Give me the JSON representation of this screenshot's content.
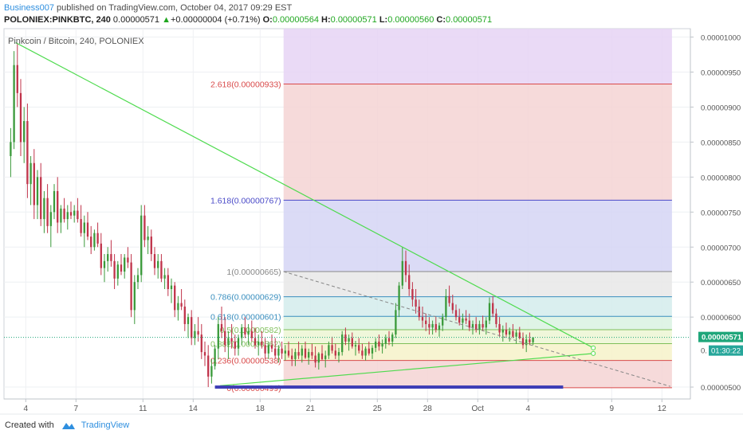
{
  "header": {
    "author": "Business007",
    "published_text": " published on TradingView.com, October 04, 2017 09:29 EST",
    "symbol": "POLONIEX:PINKBTC, 240",
    "last": "0.00000571",
    "change_arrow": "▲",
    "change": "+0.00000004 (+0.71%)",
    "o_label": "O:",
    "o_val": "0.00000564",
    "h_label": "H:",
    "h_val": "0.00000571",
    "l_label": "L:",
    "l_val": "0.00000560",
    "c_label": "C:",
    "c_val": "0.00000571"
  },
  "footer": {
    "created_with": "Created with",
    "brand": "TradingView"
  },
  "colors": {
    "up": "#3a9a3a",
    "down": "#c0334a",
    "trendline": "#4fdb4f",
    "last_price_badge": "#1fa67a",
    "timer_badge": "#26a69a",
    "fib_line_red": "#d94a4a",
    "fib_line_blue": "#4a4ac8",
    "fib_line_gray": "#888888"
  },
  "chart_data": {
    "type": "candlestick",
    "title": "Pinkcoin / Bitcoin, 240, POLONIEX",
    "y_axis": {
      "ticks": [
        "0.00001000",
        "0.00000950",
        "0.00000900",
        "0.00000850",
        "0.00000800",
        "0.00000750",
        "0.00000700",
        "0.00000650",
        "0.00000600",
        "0.00000500"
      ],
      "range": [
        4.83e-06,
        1.012e-05
      ]
    },
    "x_axis": {
      "ticks": [
        {
          "label": "4",
          "day": 4
        },
        {
          "label": "7",
          "day": 7
        },
        {
          "label": "11",
          "day": 11
        },
        {
          "label": "14",
          "day": 14
        },
        {
          "label": "18",
          "day": 18
        },
        {
          "label": "21",
          "day": 21
        },
        {
          "label": "25",
          "day": 25
        },
        {
          "label": "28",
          "day": 28
        },
        {
          "label": "Oct",
          "day": 31
        },
        {
          "label": "4",
          "day": 34
        },
        {
          "label": "9",
          "day": 39
        },
        {
          "label": "12",
          "day": 42
        }
      ],
      "range_days": [
        2.7,
        43.7
      ],
      "note": "days counted from Sep 0"
    },
    "last_price": {
      "value": 5.71e-06,
      "label": "0.00000571"
    },
    "timer": {
      "label": "01:30:22",
      "partial_price_label": "0."
    },
    "fibonacci": [
      {
        "label": "2.618(0.00000933)",
        "value": 9.33e-06
      },
      {
        "label": "1.618(0.00000767)",
        "value": 7.67e-06
      },
      {
        "label": "1(0.00000665)",
        "value": 6.65e-06
      },
      {
        "label": "0.786(0.00000629)",
        "value": 6.29e-06
      },
      {
        "label": "0.618(0.00000601)",
        "value": 6.01e-06
      },
      {
        "label": "0.5(0.00000582)",
        "value": 5.82e-06
      },
      {
        "label": "0.382(0.00000562)",
        "value": 5.62e-06
      },
      {
        "label": "0.236(0.00000538)",
        "value": 5.38e-06
      },
      {
        "label": "0(0.00000499)",
        "value": 4.99e-06
      }
    ],
    "fib_zones": [
      {
        "from": 9.33e-06,
        "to": 1.012e-05,
        "color": "#e6d3f4"
      },
      {
        "from": 7.67e-06,
        "to": 9.33e-06,
        "color": "#f5d4d4"
      },
      {
        "from": 6.65e-06,
        "to": 7.67e-06,
        "color": "#d5d5f5"
      },
      {
        "from": 6.29e-06,
        "to": 6.65e-06,
        "color": "#e8e8e8"
      },
      {
        "from": 6.01e-06,
        "to": 6.29e-06,
        "color": "#d3ecec"
      },
      {
        "from": 5.82e-06,
        "to": 6.01e-06,
        "color": "#d9f2e2"
      },
      {
        "from": 5.62e-06,
        "to": 5.82e-06,
        "color": "#ecf6d4"
      },
      {
        "from": 5.38e-06,
        "to": 5.62e-06,
        "color": "#f6f2c9"
      },
      {
        "from": 4.99e-06,
        "to": 5.38e-06,
        "color": "#f5d4d4"
      }
    ],
    "fib_start_day": 19.4,
    "trendlines": [
      {
        "from": [
          3.4,
          9.92e-06
        ],
        "to": [
          37.9,
          5.56e-06
        ]
      },
      {
        "from": [
          15.6,
          5.02e-06
        ],
        "to": [
          37.9,
          5.48e-06
        ]
      }
    ],
    "dashed_line": {
      "from": [
        19.4,
        6.65e-06
      ],
      "to": [
        42.5,
        5.01e-06
      ]
    },
    "bottom_bar": {
      "from_day": 15.3,
      "to_day": 36.1,
      "value": 5e-06
    },
    "candles_note": "approximate 4h candles, [day, open, high, low, close] in 1e-8 BTC",
    "candles": [
      [
        3.1,
        830,
        870,
        800,
        850
      ],
      [
        3.3,
        850,
        980,
        840,
        960
      ],
      [
        3.5,
        960,
        990,
        900,
        920
      ],
      [
        3.7,
        920,
        940,
        830,
        850
      ],
      [
        3.9,
        850,
        900,
        820,
        880
      ],
      [
        4.1,
        880,
        905,
        770,
        790
      ],
      [
        4.3,
        790,
        830,
        760,
        820
      ],
      [
        4.5,
        820,
        840,
        740,
        760
      ],
      [
        4.7,
        760,
        810,
        740,
        800
      ],
      [
        4.9,
        800,
        820,
        730,
        740
      ],
      [
        5.1,
        740,
        780,
        720,
        770
      ],
      [
        5.3,
        770,
        790,
        720,
        730
      ],
      [
        5.5,
        730,
        760,
        700,
        750
      ],
      [
        5.7,
        750,
        790,
        740,
        780
      ],
      [
        5.9,
        780,
        800,
        720,
        735
      ],
      [
        6.1,
        735,
        760,
        720,
        755
      ],
      [
        6.3,
        755,
        770,
        735,
        740
      ],
      [
        6.5,
        740,
        760,
        725,
        750
      ],
      [
        6.7,
        750,
        765,
        740,
        745
      ],
      [
        6.9,
        745,
        760,
        735,
        752
      ],
      [
        7.1,
        752,
        770,
        735,
        740
      ],
      [
        7.3,
        740,
        760,
        715,
        720
      ],
      [
        7.5,
        720,
        745,
        700,
        735
      ],
      [
        7.7,
        735,
        750,
        710,
        715
      ],
      [
        7.9,
        715,
        730,
        690,
        700
      ],
      [
        8.1,
        700,
        725,
        695,
        720
      ],
      [
        8.3,
        720,
        735,
        700,
        705
      ],
      [
        8.5,
        705,
        720,
        660,
        670
      ],
      [
        8.7,
        670,
        690,
        650,
        680
      ],
      [
        8.9,
        680,
        700,
        665,
        690
      ],
      [
        9.1,
        690,
        710,
        672,
        680
      ],
      [
        9.3,
        680,
        690,
        640,
        655
      ],
      [
        9.5,
        655,
        680,
        645,
        675
      ],
      [
        9.7,
        675,
        690,
        660,
        665
      ],
      [
        9.9,
        665,
        690,
        655,
        685
      ],
      [
        10.1,
        685,
        700,
        670,
        678
      ],
      [
        10.3,
        678,
        690,
        600,
        610
      ],
      [
        10.5,
        610,
        660,
        590,
        650
      ],
      [
        10.7,
        650,
        670,
        640,
        660
      ],
      [
        10.9,
        660,
        760,
        650,
        745
      ],
      [
        11.1,
        745,
        760,
        700,
        710
      ],
      [
        11.3,
        710,
        730,
        690,
        715
      ],
      [
        11.5,
        715,
        725,
        680,
        690
      ],
      [
        11.7,
        690,
        700,
        660,
        670
      ],
      [
        11.9,
        670,
        690,
        655,
        680
      ],
      [
        12.1,
        680,
        690,
        650,
        655
      ],
      [
        12.3,
        655,
        670,
        640,
        660
      ],
      [
        12.5,
        660,
        670,
        630,
        640
      ],
      [
        12.7,
        640,
        655,
        620,
        645
      ],
      [
        12.9,
        645,
        650,
        600,
        610
      ],
      [
        13.1,
        610,
        630,
        595,
        620
      ],
      [
        13.3,
        620,
        640,
        610,
        615
      ],
      [
        13.5,
        615,
        625,
        580,
        590
      ],
      [
        13.7,
        590,
        605,
        570,
        600
      ],
      [
        13.9,
        600,
        610,
        560,
        570
      ],
      [
        14.1,
        570,
        590,
        560,
        580
      ],
      [
        14.3,
        580,
        600,
        565,
        575
      ],
      [
        14.5,
        575,
        590,
        540,
        550
      ],
      [
        14.7,
        550,
        565,
        530,
        545
      ],
      [
        14.9,
        545,
        560,
        500,
        515
      ],
      [
        15.1,
        515,
        540,
        505,
        530
      ],
      [
        15.3,
        530,
        560,
        525,
        555
      ],
      [
        15.5,
        555,
        600,
        540,
        590
      ],
      [
        15.7,
        590,
        615,
        570,
        580
      ],
      [
        15.9,
        580,
        600,
        550,
        560
      ],
      [
        16.1,
        560,
        580,
        540,
        570
      ],
      [
        16.3,
        570,
        590,
        555,
        565
      ],
      [
        16.5,
        565,
        575,
        545,
        555
      ],
      [
        16.7,
        555,
        575,
        545,
        570
      ],
      [
        16.9,
        570,
        590,
        560,
        585
      ],
      [
        17.1,
        585,
        600,
        570,
        575
      ],
      [
        17.3,
        575,
        590,
        560,
        580
      ],
      [
        17.5,
        580,
        595,
        565,
        570
      ],
      [
        17.7,
        570,
        585,
        555,
        560
      ],
      [
        17.9,
        560,
        575,
        545,
        565
      ],
      [
        18.1,
        565,
        580,
        555,
        560
      ],
      [
        18.3,
        560,
        570,
        540,
        548
      ],
      [
        18.5,
        548,
        565,
        540,
        560
      ],
      [
        18.7,
        560,
        575,
        550,
        555
      ],
      [
        18.9,
        555,
        570,
        540,
        545
      ],
      [
        19.1,
        545,
        560,
        535,
        555
      ],
      [
        19.3,
        555,
        565,
        540,
        548
      ],
      [
        19.5,
        548,
        560,
        538,
        552
      ],
      [
        19.7,
        552,
        565,
        542,
        545
      ],
      [
        19.9,
        545,
        555,
        530,
        540
      ],
      [
        20.1,
        540,
        555,
        530,
        550
      ],
      [
        20.3,
        550,
        565,
        540,
        545
      ],
      [
        20.5,
        545,
        560,
        535,
        555
      ],
      [
        20.7,
        555,
        565,
        540,
        542
      ],
      [
        20.9,
        542,
        555,
        532,
        550
      ],
      [
        21.1,
        550,
        562,
        540,
        545
      ],
      [
        21.3,
        545,
        558,
        528,
        535
      ],
      [
        21.5,
        535,
        550,
        525,
        548
      ],
      [
        21.7,
        548,
        560,
        538,
        540
      ],
      [
        21.9,
        540,
        552,
        528,
        545
      ],
      [
        22.1,
        545,
        565,
        540,
        560
      ],
      [
        22.3,
        560,
        572,
        548,
        552
      ],
      [
        22.5,
        552,
        562,
        540,
        545
      ],
      [
        22.7,
        545,
        556,
        535,
        550
      ],
      [
        22.9,
        550,
        580,
        545,
        575
      ],
      [
        23.1,
        575,
        585,
        560,
        565
      ],
      [
        23.3,
        565,
        575,
        552,
        570
      ],
      [
        23.5,
        570,
        578,
        555,
        558
      ],
      [
        23.7,
        558,
        566,
        545,
        560
      ],
      [
        23.9,
        560,
        570,
        548,
        552
      ],
      [
        24.1,
        552,
        562,
        540,
        545
      ],
      [
        24.3,
        545,
        558,
        538,
        555
      ],
      [
        24.5,
        555,
        565,
        545,
        548
      ],
      [
        24.7,
        548,
        560,
        540,
        556
      ],
      [
        24.9,
        556,
        570,
        550,
        565
      ],
      [
        25.1,
        565,
        575,
        552,
        558
      ],
      [
        25.3,
        558,
        568,
        548,
        562
      ],
      [
        25.5,
        562,
        575,
        555,
        570
      ],
      [
        25.7,
        570,
        580,
        560,
        565
      ],
      [
        25.9,
        565,
        578,
        558,
        575
      ],
      [
        26.1,
        575,
        620,
        570,
        610
      ],
      [
        26.3,
        610,
        650,
        600,
        645
      ],
      [
        26.5,
        645,
        700,
        640,
        680
      ],
      [
        26.7,
        680,
        695,
        650,
        660
      ],
      [
        26.9,
        660,
        675,
        630,
        640
      ],
      [
        27.1,
        640,
        650,
        615,
        625
      ],
      [
        27.3,
        625,
        640,
        605,
        615
      ],
      [
        27.5,
        615,
        625,
        595,
        600
      ],
      [
        27.7,
        600,
        615,
        585,
        595
      ],
      [
        27.9,
        595,
        605,
        580,
        590
      ],
      [
        28.1,
        590,
        600,
        575,
        585
      ],
      [
        28.3,
        585,
        595,
        575,
        590
      ],
      [
        28.5,
        590,
        600,
        578,
        582
      ],
      [
        28.7,
        582,
        592,
        572,
        588
      ],
      [
        28.9,
        588,
        605,
        580,
        600
      ],
      [
        29.1,
        600,
        640,
        595,
        630
      ],
      [
        29.3,
        630,
        645,
        615,
        620
      ],
      [
        29.5,
        620,
        632,
        605,
        610
      ],
      [
        29.7,
        610,
        618,
        595,
        600
      ],
      [
        29.9,
        600,
        612,
        588,
        592
      ],
      [
        30.1,
        592,
        605,
        582,
        598
      ],
      [
        30.3,
        598,
        610,
        590,
        595
      ],
      [
        30.5,
        595,
        605,
        580,
        585
      ],
      [
        30.7,
        585,
        595,
        575,
        590
      ],
      [
        30.9,
        590,
        600,
        578,
        582
      ],
      [
        31.1,
        582,
        595,
        575,
        590
      ],
      [
        31.3,
        590,
        602,
        580,
        585
      ],
      [
        31.5,
        585,
        600,
        575,
        595
      ],
      [
        31.7,
        595,
        628,
        590,
        620
      ],
      [
        31.9,
        620,
        630,
        600,
        605
      ],
      [
        32.1,
        605,
        612,
        585,
        590
      ],
      [
        32.3,
        590,
        600,
        572,
        578
      ],
      [
        32.5,
        578,
        588,
        565,
        582
      ],
      [
        32.7,
        582,
        592,
        572,
        575
      ],
      [
        32.9,
        575,
        585,
        565,
        580
      ],
      [
        33.1,
        580,
        590,
        570,
        572
      ],
      [
        33.3,
        572,
        582,
        562,
        578
      ],
      [
        33.5,
        578,
        586,
        568,
        570
      ],
      [
        33.7,
        570,
        578,
        555,
        560
      ],
      [
        33.9,
        560,
        575,
        550,
        568
      ],
      [
        34.1,
        568,
        578,
        560,
        564
      ],
      [
        34.3,
        564,
        571,
        560,
        571
      ]
    ]
  }
}
